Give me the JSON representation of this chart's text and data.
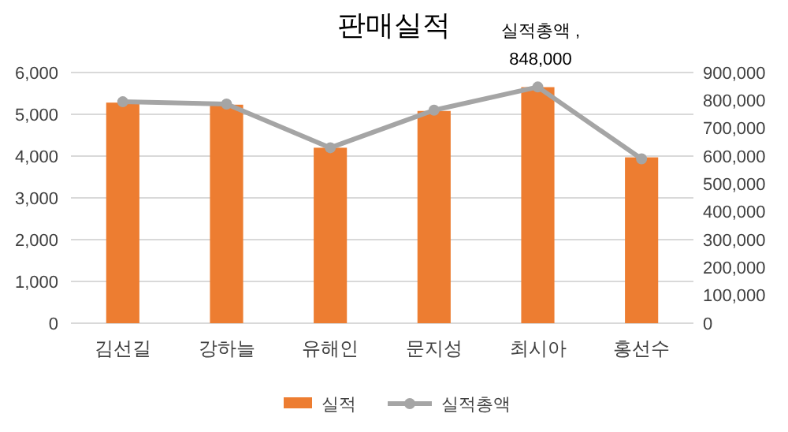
{
  "chart_data": {
    "type": "bar",
    "title": "판매실적",
    "categories": [
      "김선길",
      "강하늘",
      "유해인",
      "문지성",
      "최시아",
      "홍선수"
    ],
    "series": [
      {
        "name": "실적",
        "color": "#ed7d31",
        "values": [
          5280,
          5230,
          4200,
          5080,
          5650,
          3970
        ]
      },
      {
        "name": "실적총액",
        "type": "line",
        "axis": "y2",
        "color": "#a5a5a5",
        "values": [
          795000,
          787000,
          630000,
          765000,
          848000,
          590000
        ],
        "marker": "circle"
      }
    ],
    "ylim": [
      0,
      6000
    ],
    "yticks": [
      {
        "value": 0,
        "label": "0"
      },
      {
        "value": 1000,
        "label": "1,000"
      },
      {
        "value": 2000,
        "label": "2,000"
      },
      {
        "value": 3000,
        "label": "3,000"
      },
      {
        "value": 4000,
        "label": "4,000"
      },
      {
        "value": 5000,
        "label": "5,000"
      },
      {
        "value": 6000,
        "label": "6,000"
      }
    ],
    "y2lim": [
      0,
      900000
    ],
    "y2ticks": [
      {
        "value": 0,
        "label": "0"
      },
      {
        "value": 100000,
        "label": "100,000"
      },
      {
        "value": 200000,
        "label": "200,000"
      },
      {
        "value": 300000,
        "label": "300,000"
      },
      {
        "value": 400000,
        "label": "400,000"
      },
      {
        "value": 500000,
        "label": "500,000"
      },
      {
        "value": 600000,
        "label": "600,000"
      },
      {
        "value": 700000,
        "label": "700,000"
      },
      {
        "value": 800000,
        "label": "800,000"
      },
      {
        "value": 900000,
        "label": "900,000"
      }
    ],
    "grid": "y",
    "legend": "bottom",
    "annotations": [
      "실적총액 ,\n848,000"
    ]
  }
}
